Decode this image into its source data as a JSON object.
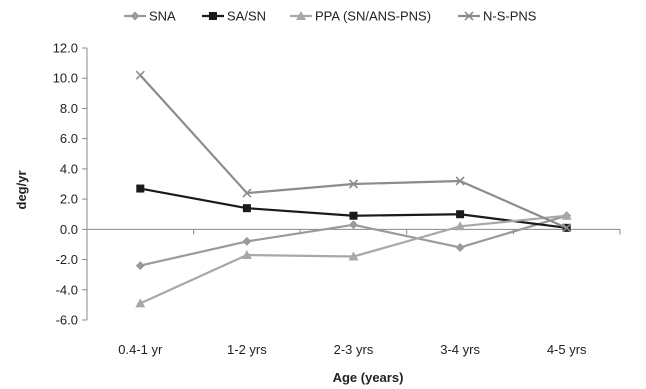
{
  "chart_data": {
    "type": "line",
    "title": "",
    "xlabel": "Age (years)",
    "ylabel": "deg/yr",
    "categories": [
      "0.4-1 yr",
      "1-2 yrs",
      "2-3 yrs",
      "3-4 yrs",
      "4-5 yrs"
    ],
    "ylim": [
      -6.0,
      12.0
    ],
    "yticks": [
      "12.0",
      "10.0",
      "8.0",
      "6.0",
      "4.0",
      "2.0",
      "0.0",
      "-2.0",
      "-4.0",
      "-6.0"
    ],
    "grid": false,
    "legend_position": "top",
    "series": [
      {
        "name": "SNA",
        "marker": "diamond",
        "color": "#9a9a9a",
        "values": [
          -2.4,
          -0.8,
          0.3,
          -1.2,
          0.9
        ]
      },
      {
        "name": "SA/SN",
        "marker": "square",
        "color": "#1a1a1a",
        "values": [
          2.7,
          1.4,
          0.9,
          1.0,
          0.1
        ]
      },
      {
        "name": "PPA (SN/ANS-PNS)",
        "marker": "triangle",
        "color": "#a8a8a8",
        "values": [
          -4.9,
          -1.7,
          -1.8,
          0.2,
          0.9
        ]
      },
      {
        "name": "N-S-PNS",
        "marker": "x",
        "color": "#8c8c8c",
        "values": [
          10.2,
          2.4,
          3.0,
          3.2,
          0.1
        ]
      }
    ]
  }
}
